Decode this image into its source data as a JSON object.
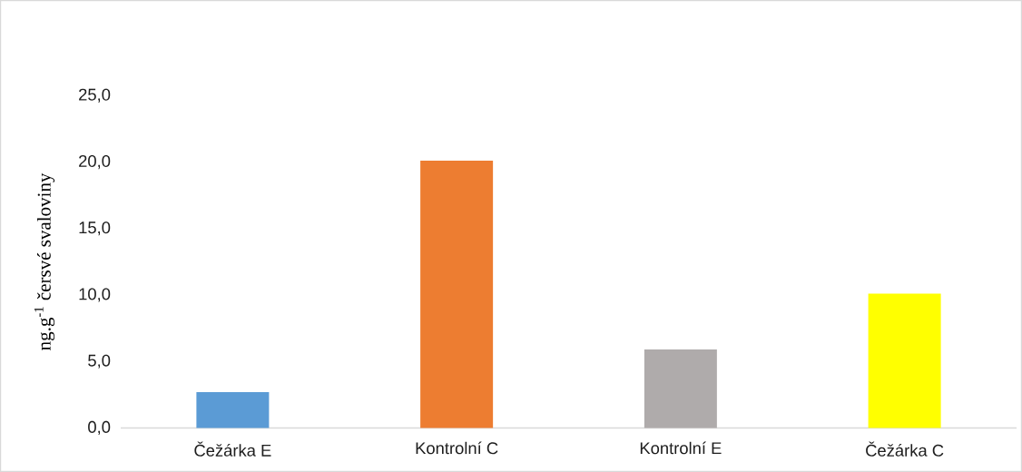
{
  "chart_data": {
    "type": "bar",
    "ylabel": "ng.g$^{-1}$ čersvé svaloviny",
    "categories": [
      "Čežárka E",
      "Kontrolní C",
      "Kontrolní E",
      "Čežárka C"
    ],
    "values": [
      2.7,
      20.1,
      5.9,
      10.1
    ],
    "colors": [
      "#5b9bd5",
      "#ed7d31",
      "#afabab",
      "#ffff00"
    ],
    "ylim": [
      0,
      25
    ],
    "yticks": [
      {
        "value": 0,
        "label": "0,0"
      },
      {
        "value": 5,
        "label": "5,0"
      },
      {
        "value": 10,
        "label": "10,0"
      },
      {
        "value": 15,
        "label": "15,0"
      },
      {
        "value": 20,
        "label": "20,0"
      },
      {
        "value": 25,
        "label": "25,0"
      }
    ],
    "grid": false,
    "legend": false
  }
}
